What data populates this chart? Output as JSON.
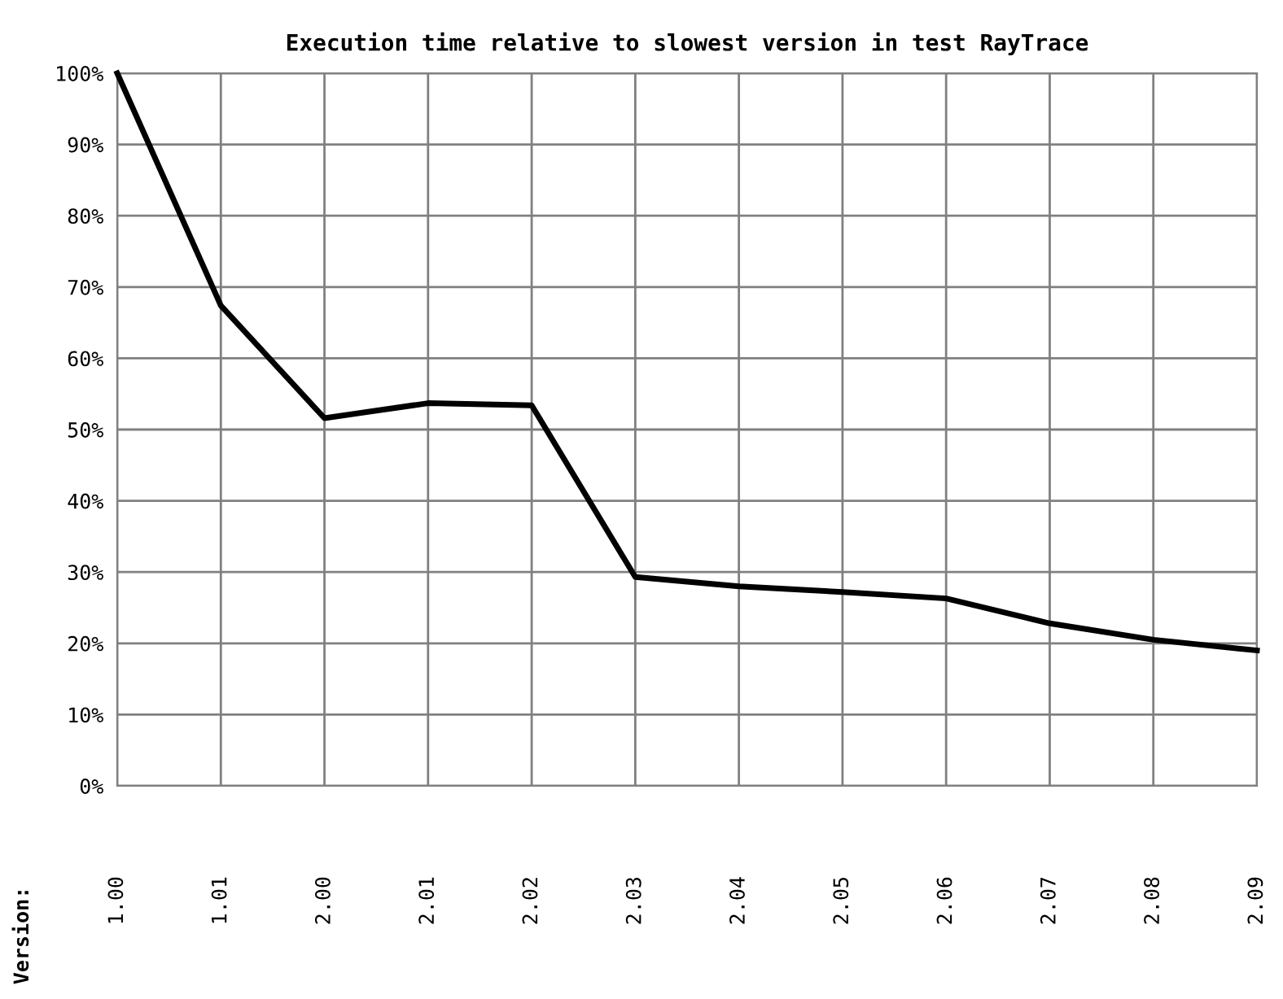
{
  "chart_data": {
    "type": "line",
    "title": "Execution time relative to slowest version in test RayTrace",
    "annotations": [
      "Version:"
    ],
    "categories": [
      "1.00",
      "1.01",
      "2.00",
      "2.01",
      "2.02",
      "2.03",
      "2.04",
      "2.05",
      "2.06",
      "2.07",
      "2.08",
      "2.09"
    ],
    "series": [
      {
        "color": "#000000",
        "values": [
          100,
          67.4,
          51.6,
          53.7,
          53.4,
          29.3,
          28.0,
          27.2,
          26.3,
          22.8,
          20.5,
          19.0
        ]
      }
    ],
    "ylim": [
      0,
      100
    ],
    "yticks": [
      {
        "value": 0,
        "label": "0%"
      },
      {
        "value": 10,
        "label": "10%"
      },
      {
        "value": 20,
        "label": "20%"
      },
      {
        "value": 30,
        "label": "30%"
      },
      {
        "value": 40,
        "label": "40%"
      },
      {
        "value": 50,
        "label": "50%"
      },
      {
        "value": 60,
        "label": "60%"
      },
      {
        "value": 70,
        "label": "70%"
      },
      {
        "value": 80,
        "label": "80%"
      },
      {
        "value": 90,
        "label": "90%"
      },
      {
        "value": 100,
        "label": "100%"
      }
    ],
    "grid": true,
    "marker": "none",
    "line_style": "solid"
  }
}
